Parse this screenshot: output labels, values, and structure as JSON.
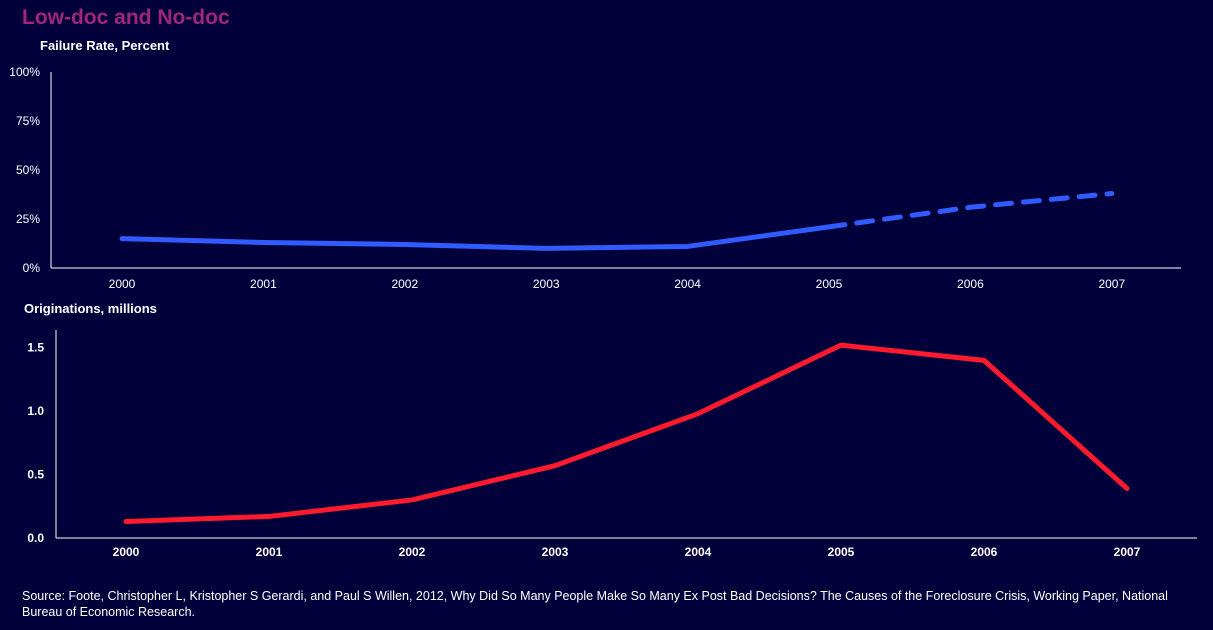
{
  "page": {
    "title": "Low-doc and No-doc",
    "source": "Source: Foote, Christopher L, Kristopher S Gerardi, and Paul S Willen, 2012, Why Did So Many People Make So Many Ex Post Bad Decisions? The Causes of the Foreclosure Crisis, Working Paper, National Bureau of Economic Research."
  },
  "colors": {
    "background": "#02003a",
    "title": "#a0267a",
    "failure_line": "#2f5bff",
    "originations_line": "#ff1a2e"
  },
  "chart_data": [
    {
      "type": "line",
      "title": "Failure Rate, Percent",
      "categories": [
        "2000",
        "2001",
        "2002",
        "2003",
        "2004",
        "2005",
        "2006",
        "2007"
      ],
      "ylim": [
        0,
        100
      ],
      "y_ticks": [
        "0%",
        "25%",
        "50%",
        "75%",
        "100%"
      ],
      "series": [
        {
          "values": [
            15,
            13,
            12,
            10,
            11,
            21,
            31,
            38
          ],
          "solid_through": "2005",
          "projected_after": "2005",
          "color": "#2f5bff"
        }
      ],
      "grid": false
    },
    {
      "type": "line",
      "title": "Originations, millions",
      "categories": [
        "2000",
        "2001",
        "2002",
        "2003",
        "2004",
        "2005",
        "2006",
        "2007"
      ],
      "ylim": [
        0,
        1.6
      ],
      "y_ticks": [
        "0.0",
        "0.5",
        "1.0",
        "1.5"
      ],
      "series": [
        {
          "values": [
            0.13,
            0.17,
            0.3,
            0.57,
            0.98,
            1.52,
            1.4,
            0.39
          ],
          "color": "#ff1a2e"
        }
      ],
      "grid": false
    }
  ]
}
